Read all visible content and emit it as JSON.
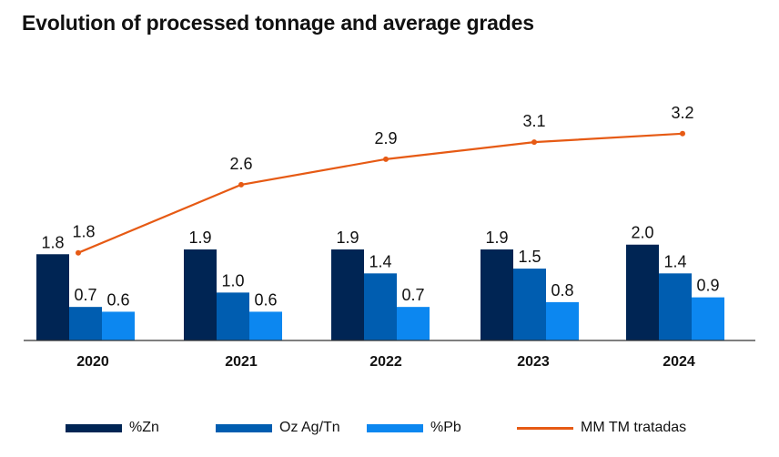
{
  "title": "Evolution of processed tonnage and average grades",
  "colors": {
    "zn": "#002554",
    "ag": "#005db0",
    "pb": "#0c87f0",
    "line": "#e65a14",
    "axis": "#333333"
  },
  "chart_data": {
    "type": "bar",
    "title": "Evolution of processed tonnage and average grades",
    "categories": [
      "2020",
      "2021",
      "2022",
      "2023",
      "2024"
    ],
    "series": [
      {
        "name": "%Zn",
        "type": "bar",
        "values": [
          1.8,
          1.9,
          1.9,
          1.9,
          2.0
        ]
      },
      {
        "name": "Oz Ag/Tn",
        "type": "bar",
        "values": [
          0.7,
          1.0,
          1.4,
          1.5,
          1.4
        ]
      },
      {
        "name": "%Pb",
        "type": "bar",
        "values": [
          0.6,
          0.6,
          0.7,
          0.8,
          0.9
        ]
      },
      {
        "name": "MM TM tratadas",
        "type": "line",
        "values": [
          1.8,
          2.6,
          2.9,
          3.1,
          3.2
        ]
      }
    ],
    "value_labels": {
      "bars": [
        [
          "1.8",
          "1.9",
          "1.9",
          "1.9",
          "2.0"
        ],
        [
          "0.7",
          "1.0",
          "1.4",
          "1.5",
          "1.4"
        ],
        [
          "0.6",
          "0.6",
          "0.7",
          "0.8",
          "0.9"
        ]
      ],
      "line": [
        "1.8",
        "2.6",
        "2.9",
        "3.1",
        "3.2"
      ]
    },
    "grid": false,
    "legend_position": "bottom"
  },
  "legend": [
    {
      "label": "%Zn",
      "kind": "bar"
    },
    {
      "label": "Oz Ag/Tn",
      "kind": "bar"
    },
    {
      "label": "%Pb",
      "kind": "bar"
    },
    {
      "label": "MM TM tratadas",
      "kind": "line"
    }
  ]
}
